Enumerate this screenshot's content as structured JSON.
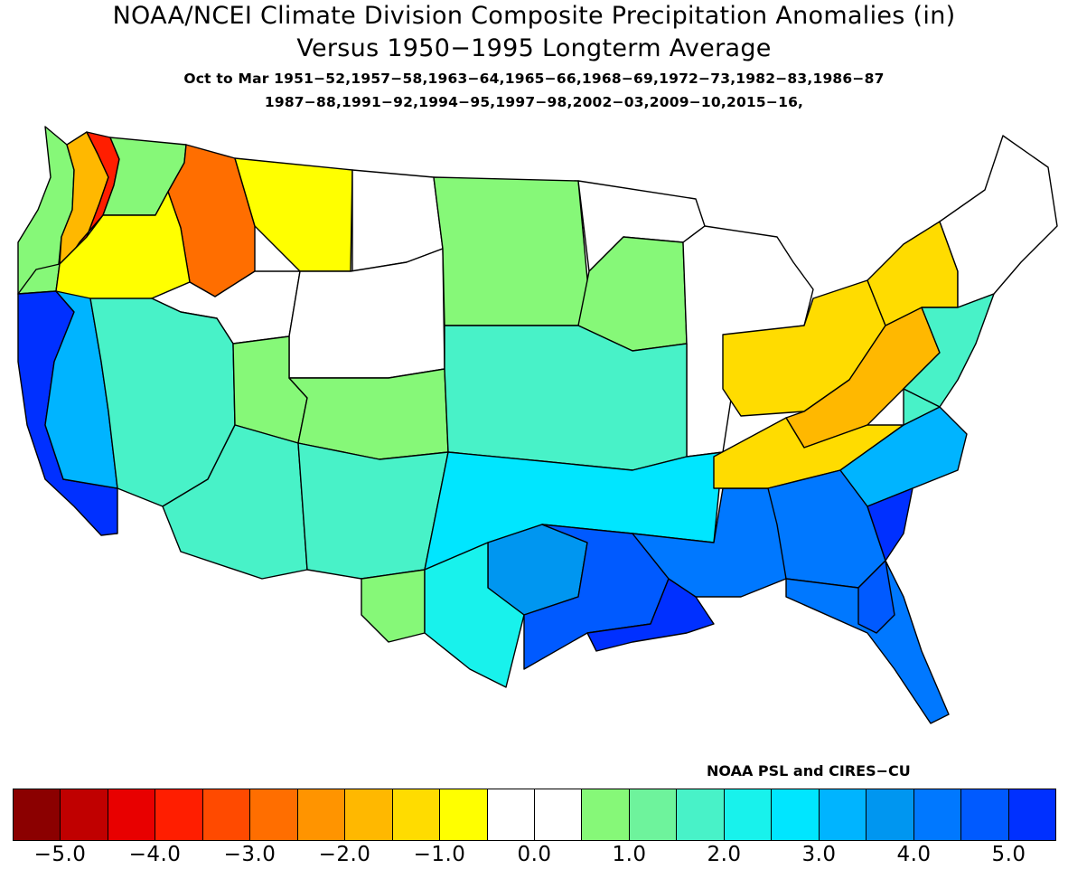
{
  "title": {
    "line1": "NOAA/NCEI Climate Division Composite Precipitation Anomalies (in)",
    "line2": "Versus 1950−1995 Longterm Average",
    "line3": "Oct to Mar  1951−52,1957−58,1963−64,1965−66,1968−69,1972−73,1982−83,1986−87",
    "line4": "1987−88,1991−92,1994−95,1997−98,2002−03,2009−10,2015−16,"
  },
  "credit": "NOAA PSL and CIRES−CU",
  "colorbar": {
    "colors": [
      "#8b0000",
      "#c00000",
      "#e80000",
      "#ff1e00",
      "#ff4a00",
      "#ff6e00",
      "#ff9400",
      "#ffb800",
      "#ffdc00",
      "#ffff00",
      "#ffffff",
      "#ffffff",
      "#86f878",
      "#6ef39c",
      "#48f2c8",
      "#18f2ec",
      "#00e6ff",
      "#00b4ff",
      "#0096f0",
      "#0078ff",
      "#005aff",
      "#0030ff"
    ],
    "tick_labels": [
      "−5.0",
      "−4.0",
      "−3.0",
      "−2.0",
      "−1.0",
      "0.0",
      "1.0",
      "2.0",
      "3.0",
      "4.0",
      "5.0"
    ]
  },
  "map_regions": [
    {
      "id": "wa-coast",
      "fill": "#86f878"
    },
    {
      "id": "wa-puget",
      "fill": "#ffb800"
    },
    {
      "id": "wa-cascades",
      "fill": "#ff1e00"
    },
    {
      "id": "wa-ne",
      "fill": "#86f878"
    },
    {
      "id": "id-north",
      "fill": "#ff6e00"
    },
    {
      "id": "mt-west",
      "fill": "#ffff00"
    },
    {
      "id": "mt-central",
      "fill": "#ffffff"
    },
    {
      "id": "or-coast",
      "fill": "#86f878"
    },
    {
      "id": "or-interior",
      "fill": "#ffff00"
    },
    {
      "id": "id-south",
      "fill": "#ffffff"
    },
    {
      "id": "wy",
      "fill": "#ffffff"
    },
    {
      "id": "north-plains",
      "fill": "#86f878"
    },
    {
      "id": "upper-midwest",
      "fill": "#ffffff"
    },
    {
      "id": "mn-wi",
      "fill": "#86f878"
    },
    {
      "id": "great-lakes",
      "fill": "#ffffff"
    },
    {
      "id": "ohio-valley",
      "fill": "#ffdc00"
    },
    {
      "id": "appalachia",
      "fill": "#ffb800"
    },
    {
      "id": "new-york",
      "fill": "#ffdc00"
    },
    {
      "id": "new-england",
      "fill": "#ffffff"
    },
    {
      "id": "mid-atlantic",
      "fill": "#48f2c8"
    },
    {
      "id": "ca-coast",
      "fill": "#0030ff"
    },
    {
      "id": "ca-central",
      "fill": "#00b4ff"
    },
    {
      "id": "nv",
      "fill": "#48f2c8"
    },
    {
      "id": "ut-n",
      "fill": "#86f878"
    },
    {
      "id": "co",
      "fill": "#86f878"
    },
    {
      "id": "az",
      "fill": "#48f2c8"
    },
    {
      "id": "nm",
      "fill": "#48f2c8"
    },
    {
      "id": "west-tx",
      "fill": "#86f878"
    },
    {
      "id": "central-plains",
      "fill": "#48f2c8"
    },
    {
      "id": "ok-north-tx",
      "fill": "#00e6ff"
    },
    {
      "id": "central-tx",
      "fill": "#0096f0"
    },
    {
      "id": "south-tx",
      "fill": "#18f2ec"
    },
    {
      "id": "east-tx-la",
      "fill": "#005aff"
    },
    {
      "id": "la-coast",
      "fill": "#0030ff"
    },
    {
      "id": "ms-al",
      "fill": "#0078ff"
    },
    {
      "id": "tn-ky",
      "fill": "#ffdc00"
    },
    {
      "id": "georgia",
      "fill": "#0078ff"
    },
    {
      "id": "carolinas",
      "fill": "#00b4ff"
    },
    {
      "id": "sc-coast",
      "fill": "#0030ff"
    },
    {
      "id": "va",
      "fill": "#48f2c8"
    },
    {
      "id": "florida",
      "fill": "#0078ff"
    },
    {
      "id": "fl-north",
      "fill": "#005aff"
    }
  ]
}
